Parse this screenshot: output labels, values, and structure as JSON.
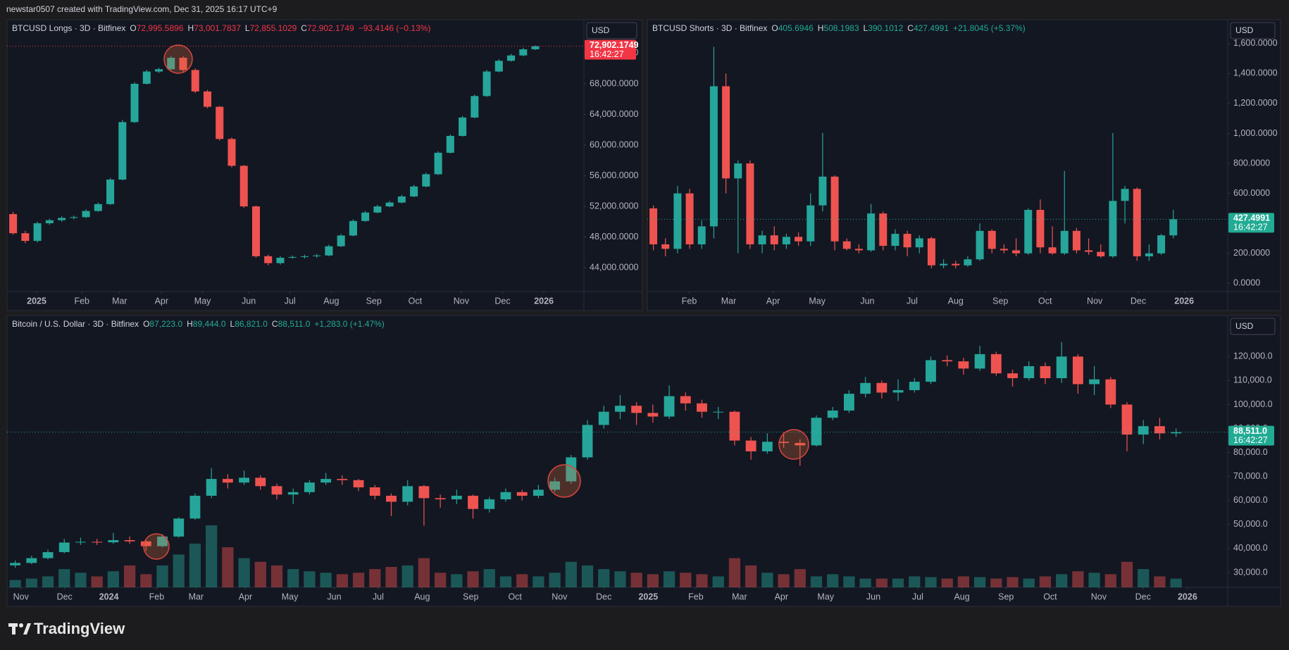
{
  "header": "newstar0507 created with TradingView.com, Dec 31, 2025 16:17 UTC+9",
  "logo": "TradingView",
  "chart_data": [
    {
      "type": "candlestick",
      "symbol": "BTCUSD Longs · 3D · Bitfinex",
      "ohlc": [
        {
          "label": "O",
          "value": "72,995.5896"
        },
        {
          "label": "H",
          "value": "73,001.7837"
        },
        {
          "label": "L",
          "value": "72,855.1029"
        },
        {
          "label": "C",
          "value": "72,902.1749"
        }
      ],
      "change": "−93.4146 (−0.13%)",
      "legend_color": "#f23645",
      "currency": "USD",
      "last_price": {
        "value": 72902.1749,
        "label": "72,902.1749"
      },
      "countdown": "16:42:27",
      "last_color": "#f23645",
      "colors": {
        "up": "#26a69a",
        "down": "#ef5350"
      },
      "grid": false,
      "xlim": [
        0,
        47.5
      ],
      "xticks": [
        {
          "value": 2.44,
          "label": "2025"
        },
        {
          "value": 6.16,
          "label": "Feb"
        },
        {
          "value": 9.27,
          "label": "Mar"
        },
        {
          "value": 12.72,
          "label": "Apr"
        },
        {
          "value": 16.1,
          "label": "May"
        },
        {
          "value": 19.9,
          "label": "Jun"
        },
        {
          "value": 23.3,
          "label": "Jul"
        },
        {
          "value": 26.7,
          "label": "Aug"
        },
        {
          "value": 30.2,
          "label": "Sep"
        },
        {
          "value": 33.6,
          "label": "Oct"
        },
        {
          "value": 37.4,
          "label": "Nov"
        },
        {
          "value": 40.8,
          "label": "Dec"
        },
        {
          "value": 44.2,
          "label": "2026"
        }
      ],
      "ylim": [
        40890,
        76360
      ],
      "yticks": [
        {
          "value": 44000,
          "label": "44,000.0000"
        },
        {
          "value": 48000,
          "label": "48,000.0000"
        },
        {
          "value": 52000,
          "label": "52,000.0000"
        },
        {
          "value": 56000,
          "label": "56,000.0000"
        },
        {
          "value": 60000,
          "label": "60,000.0000"
        },
        {
          "value": 64000,
          "label": "64,000.0000"
        },
        {
          "value": 68000,
          "label": "68,000.0000"
        },
        {
          "value": 72000,
          "label": "72,000.0000"
        }
      ],
      "open": [
        51000,
        48500,
        47500,
        49800,
        50200,
        50500,
        50600,
        51400,
        52300,
        55500,
        63000,
        68000,
        69600,
        69900,
        71400,
        69800,
        67000,
        65000,
        60800,
        57300,
        52000,
        45500,
        44600,
        45300,
        45400,
        45500,
        45600,
        46800,
        48200,
        50100,
        51200,
        52000,
        52500,
        53300,
        54600,
        56200,
        59000,
        61200,
        63600,
        66400,
        69600,
        71000,
        71700,
        72500
      ],
      "high": [
        51300,
        48800,
        50000,
        50400,
        50700,
        50800,
        51600,
        52500,
        55700,
        63300,
        68200,
        69800,
        70100,
        71600,
        71600,
        70000,
        67200,
        65100,
        61000,
        57400,
        52100,
        45700,
        45500,
        45600,
        45700,
        45800,
        47000,
        48400,
        50300,
        51400,
        52200,
        52700,
        53500,
        54800,
        56400,
        59200,
        61400,
        63800,
        66600,
        69800,
        71200,
        71900,
        72700,
        73000
      ],
      "low": [
        48300,
        47200,
        47300,
        49600,
        50000,
        50300,
        50500,
        51300,
        52200,
        55400,
        62900,
        67900,
        69400,
        69800,
        69600,
        66800,
        64800,
        60600,
        57100,
        51800,
        45300,
        44300,
        44400,
        45200,
        45200,
        45300,
        45500,
        46700,
        48100,
        50000,
        51100,
        51900,
        52400,
        53200,
        54500,
        56100,
        58900,
        61100,
        63500,
        66300,
        69500,
        70900,
        71600,
        72400
      ],
      "close": [
        48500,
        47500,
        49800,
        50200,
        50500,
        50600,
        51400,
        52300,
        55500,
        63000,
        68000,
        69600,
        69900,
        71400,
        69800,
        67000,
        65000,
        60800,
        57300,
        52000,
        45500,
        44600,
        45300,
        45400,
        45500,
        45600,
        46800,
        48200,
        50100,
        51200,
        52000,
        52500,
        53300,
        54600,
        56200,
        59000,
        61200,
        63600,
        66400,
        69600,
        71000,
        71700,
        72500,
        72900
      ]
    },
    {
      "type": "candlestick",
      "symbol": "BTCUSD Shorts · 3D · Bitfinex",
      "ohlc": [
        {
          "label": "O",
          "value": "405.6946"
        },
        {
          "label": "H",
          "value": "508.1983"
        },
        {
          "label": "L",
          "value": "390.1012"
        },
        {
          "label": "C",
          "value": "427.4991"
        }
      ],
      "change": "+21.8045 (+5.37%)",
      "legend_color": "#22ab94",
      "currency": "USD",
      "last_price": 427.4991,
      "countdown": "16:42:27",
      "last_color": "#22ab94",
      "colors": {
        "up": "#26a69a",
        "down": "#ef5350"
      },
      "grid": false,
      "xlim": [
        0,
        48
      ],
      "xticks": [
        {
          "value": 3.47,
          "label": "Feb"
        },
        {
          "value": 6.73,
          "label": "Mar"
        },
        {
          "value": 10.4,
          "label": "Apr"
        },
        {
          "value": 14.05,
          "label": "May"
        },
        {
          "value": 18.2,
          "label": "Jun"
        },
        {
          "value": 21.9,
          "label": "Jul"
        },
        {
          "value": 25.5,
          "label": "Aug"
        },
        {
          "value": 29.2,
          "label": "Sep"
        },
        {
          "value": 32.9,
          "label": "Oct"
        },
        {
          "value": 37.0,
          "label": "Nov"
        },
        {
          "value": 40.6,
          "label": "Dec"
        },
        {
          "value": 44.4,
          "label": "2026"
        }
      ],
      "ylim": [
        -55,
        1759
      ],
      "yticks": [
        {
          "value": 0,
          "label": "0.0000"
        },
        {
          "value": 200,
          "label": "200.0000"
        },
        {
          "value": 400,
          "label": "400.0000"
        },
        {
          "value": 600,
          "label": "600.0000"
        },
        {
          "value": 800,
          "label": "800.0000"
        },
        {
          "value": 1000,
          "label": "1,000.0000"
        },
        {
          "value": 1200,
          "label": "1,200.0000"
        },
        {
          "value": 1400,
          "label": "1,400.0000"
        },
        {
          "value": 1600,
          "label": "1,600.0000"
        }
      ],
      "open": [
        500,
        260,
        230,
        600,
        260,
        380,
        1315,
        700,
        800,
        260,
        320,
        260,
        310,
        280,
        520,
        712,
        280,
        230,
        220,
        466,
        250,
        330,
        240,
        300,
        120,
        130,
        120,
        160,
        350,
        230,
        220,
        200,
        490,
        240,
        200,
        350,
        220,
        210,
        180,
        550,
        630,
        180,
        200,
        320
      ],
      "high": [
        520,
        300,
        650,
        630,
        420,
        1578,
        1400,
        820,
        820,
        350,
        380,
        330,
        340,
        600,
        1003,
        720,
        300,
        260,
        530,
        480,
        360,
        350,
        320,
        310,
        160,
        150,
        180,
        400,
        360,
        260,
        300,
        500,
        560,
        380,
        750,
        370,
        300,
        260,
        1003,
        650,
        640,
        260,
        330,
        490
      ],
      "low": [
        220,
        180,
        200,
        230,
        230,
        300,
        600,
        200,
        230,
        200,
        220,
        230,
        250,
        250,
        480,
        220,
        220,
        200,
        210,
        220,
        220,
        180,
        200,
        100,
        100,
        100,
        110,
        150,
        200,
        200,
        180,
        190,
        200,
        190,
        190,
        200,
        190,
        170,
        170,
        400,
        150,
        150,
        190,
        300
      ],
      "close": [
        260,
        230,
        600,
        260,
        380,
        1315,
        700,
        800,
        260,
        320,
        260,
        310,
        280,
        520,
        712,
        280,
        230,
        220,
        466,
        250,
        330,
        240,
        300,
        120,
        130,
        120,
        160,
        350,
        230,
        220,
        200,
        490,
        240,
        200,
        350,
        220,
        210,
        180,
        550,
        630,
        180,
        200,
        320,
        427
      ]
    },
    {
      "type": "candlestick",
      "symbol": "Bitcoin / U.S. Dollar · 3D · Bitfinex",
      "ohlc": [
        {
          "label": "O",
          "value": "87,223.0"
        },
        {
          "label": "H",
          "value": "89,444.0"
        },
        {
          "label": "L",
          "value": "86,821.0"
        },
        {
          "label": "C",
          "value": "88,511.0"
        }
      ],
      "change": "+1,283.0 (+1.47%)",
      "legend_color": "#22ab94",
      "currency": "USD",
      "last_price": {
        "value": 88511,
        "label": "88,511.0"
      },
      "countdown": "16:42:27",
      "last_color": "#22ab94",
      "colors": {
        "up": "#26a69a",
        "down": "#ef5350"
      },
      "grid": false,
      "xlim": [
        0,
        74.66
      ],
      "xticks": [
        {
          "value": 0.85,
          "label": "Nov"
        },
        {
          "value": 3.52,
          "label": "Dec"
        },
        {
          "value": 6.23,
          "label": "2024"
        },
        {
          "value": 9.15,
          "label": "Feb"
        },
        {
          "value": 11.56,
          "label": "Mar"
        },
        {
          "value": 14.58,
          "label": "Apr"
        },
        {
          "value": 17.3,
          "label": "May"
        },
        {
          "value": 20.01,
          "label": "Jun"
        },
        {
          "value": 22.7,
          "label": "Jul"
        },
        {
          "value": 25.39,
          "label": "Aug"
        },
        {
          "value": 28.36,
          "label": "Sep"
        },
        {
          "value": 31.07,
          "label": "Oct"
        },
        {
          "value": 33.79,
          "label": "Nov"
        },
        {
          "value": 36.5,
          "label": "Dec"
        },
        {
          "value": 39.22,
          "label": "2025"
        },
        {
          "value": 42.13,
          "label": "Feb"
        },
        {
          "value": 44.8,
          "label": "Mar"
        },
        {
          "value": 47.36,
          "label": "Apr"
        },
        {
          "value": 50.07,
          "label": "May"
        },
        {
          "value": 52.99,
          "label": "Jun"
        },
        {
          "value": 55.7,
          "label": "Jul"
        },
        {
          "value": 58.4,
          "label": "Aug"
        },
        {
          "value": 61.1,
          "label": "Sep"
        },
        {
          "value": 63.8,
          "label": "Oct"
        },
        {
          "value": 66.77,
          "label": "Nov"
        },
        {
          "value": 69.48,
          "label": "Dec"
        },
        {
          "value": 72.2,
          "label": "2026"
        }
      ],
      "ylim": [
        23840,
        137110
      ],
      "yticks": [
        {
          "value": 30000,
          "label": "30,000.0"
        },
        {
          "value": 40000,
          "label": "40,000.0"
        },
        {
          "value": 50000,
          "label": "50,000.0"
        },
        {
          "value": 60000,
          "label": "60,000.0"
        },
        {
          "value": 70000,
          "label": "70,000.0"
        },
        {
          "value": 80000,
          "label": "80,000.0"
        },
        {
          "value": 90000,
          "label": "90,000.0"
        },
        {
          "value": 100000,
          "label": "100,000.0"
        },
        {
          "value": 110000,
          "label": "110,000.0"
        },
        {
          "value": 120000,
          "label": "120,000.0"
        }
      ],
      "open": [
        33000,
        34000,
        36000,
        38500,
        42500,
        42800,
        42600,
        43500,
        43000,
        41000,
        45000,
        52500,
        62000,
        69000,
        67500,
        69500,
        66000,
        62500,
        63500,
        67500,
        69000,
        68500,
        65500,
        62000,
        59500,
        66000,
        61000,
        60500,
        62000,
        56500,
        60500,
        63500,
        62000,
        64500,
        68000,
        78000,
        91500,
        97000,
        99500,
        96500,
        95000,
        103500,
        100500,
        97000,
        97000,
        85000,
        80500,
        84500,
        84000,
        83000,
        94500,
        97500,
        104500,
        109000,
        105000,
        106000,
        109500,
        118500,
        118000,
        115000,
        121000,
        113000,
        111000,
        116000,
        111000,
        120000,
        108500,
        110500,
        100000,
        87500,
        91000,
        88000
      ],
      "high": [
        35000,
        37000,
        39500,
        44000,
        44500,
        44000,
        46500,
        45000,
        43500,
        46000,
        53000,
        63000,
        73500,
        71000,
        72500,
        70500,
        67000,
        65000,
        68500,
        71500,
        70500,
        69000,
        66500,
        63000,
        68500,
        66500,
        62500,
        64500,
        62500,
        61500,
        65000,
        64500,
        66500,
        69500,
        79000,
        93500,
        99500,
        104000,
        101000,
        100000,
        108000,
        105000,
        102000,
        99000,
        97500,
        86500,
        88000,
        88500,
        85500,
        95500,
        99000,
        106000,
        111500,
        110000,
        110500,
        111000,
        120000,
        120500,
        119500,
        124500,
        122000,
        114500,
        118000,
        117500,
        126000,
        121000,
        116000,
        111500,
        101000,
        93500,
        94500,
        90000
      ],
      "low": [
        32000,
        33500,
        35500,
        38000,
        41500,
        41500,
        42000,
        42000,
        39000,
        40500,
        44500,
        52000,
        61000,
        65000,
        66500,
        64500,
        60500,
        58500,
        62500,
        66500,
        66500,
        64000,
        60500,
        53500,
        58000,
        49500,
        57000,
        58500,
        52500,
        55000,
        59500,
        60000,
        61000,
        63500,
        67000,
        77000,
        90000,
        94000,
        91500,
        92500,
        94000,
        97500,
        94500,
        94000,
        83000,
        77000,
        79500,
        82000,
        74500,
        82500,
        93500,
        96500,
        103000,
        102500,
        101500,
        105000,
        108500,
        116000,
        112500,
        114000,
        112000,
        107500,
        110000,
        108500,
        109000,
        104500,
        104000,
        98500,
        80500,
        83500,
        85500,
        86500
      ],
      "close": [
        34000,
        36000,
        38500,
        42500,
        42800,
        42600,
        43500,
        43000,
        41000,
        45000,
        52500,
        62000,
        69000,
        67500,
        69500,
        66000,
        62500,
        63500,
        67500,
        69000,
        68500,
        65500,
        62000,
        59500,
        66000,
        61000,
        60500,
        62000,
        56500,
        60500,
        63500,
        62000,
        64500,
        68000,
        78000,
        91500,
        97000,
        99500,
        96500,
        95000,
        103500,
        100500,
        97000,
        97000,
        85000,
        80500,
        84500,
        84000,
        83000,
        94500,
        97500,
        104500,
        109000,
        105000,
        106000,
        109500,
        118500,
        118000,
        115000,
        121000,
        113000,
        111000,
        116000,
        111000,
        120000,
        108500,
        110500,
        100000,
        87500,
        91000,
        88000,
        88500
      ],
      "volume": [
        10,
        12,
        15,
        25,
        20,
        15,
        22,
        30,
        18,
        30,
        45,
        60,
        85,
        55,
        40,
        35,
        30,
        25,
        22,
        20,
        18,
        20,
        25,
        28,
        30,
        40,
        20,
        18,
        22,
        25,
        15,
        18,
        15,
        20,
        35,
        30,
        25,
        22,
        20,
        18,
        22,
        20,
        18,
        15,
        40,
        30,
        20,
        18,
        25,
        15,
        18,
        15,
        12,
        12,
        12,
        15,
        14,
        12,
        15,
        14,
        12,
        14,
        12,
        15,
        18,
        22,
        20,
        18,
        35,
        25,
        15,
        12
      ]
    }
  ]
}
